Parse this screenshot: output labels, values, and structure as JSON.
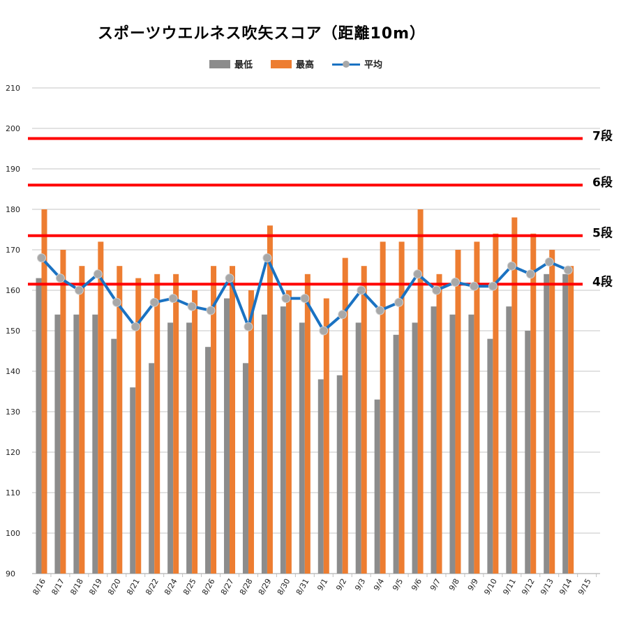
{
  "title": "スポーツウエルネス吹矢スコア（距離10m）",
  "legend": {
    "low": "最低",
    "high": "最高",
    "avg": "平均"
  },
  "colors": {
    "low": "#8c8c8c",
    "high": "#ed7d31",
    "avg_line": "#1a72c2",
    "avg_marker": "#a8a8a8",
    "dan_line": "#ff0000",
    "grid": "#d9d9d9"
  },
  "chart_data": {
    "type": "bar",
    "title": "スポーツウエルネス吹矢スコア（距離10m）",
    "xlabel": "",
    "ylabel": "",
    "ylim": [
      90,
      210
    ],
    "yticks": [
      90,
      100,
      110,
      120,
      130,
      140,
      150,
      160,
      170,
      180,
      190,
      200,
      210
    ],
    "grid": true,
    "legend_position": "top",
    "categories": [
      "8/16",
      "8/17",
      "8/18",
      "8/19",
      "8/20",
      "8/21",
      "8/22",
      "8/24",
      "8/25",
      "8/26",
      "8/27",
      "8/28",
      "8/29",
      "8/30",
      "8/31",
      "9/1",
      "9/2",
      "9/3",
      "9/4",
      "9/5",
      "9/6",
      "9/7",
      "9/8",
      "9/9",
      "9/10",
      "9/11",
      "9/12",
      "9/13",
      "9/14",
      "9/15"
    ],
    "series": [
      {
        "name": "最低",
        "type": "bar",
        "values": [
          163,
          154,
          154,
          154,
          148,
          136,
          142,
          152,
          152,
          146,
          158,
          142,
          154,
          156,
          152,
          138,
          139,
          152,
          133,
          149,
          152,
          156,
          154,
          154,
          148,
          156,
          150,
          164,
          164,
          null
        ]
      },
      {
        "name": "最高",
        "type": "bar",
        "values": [
          180,
          170,
          166,
          172,
          166,
          163,
          164,
          164,
          160,
          166,
          166,
          160,
          176,
          160,
          164,
          158,
          168,
          166,
          172,
          172,
          180,
          164,
          170,
          172,
          174,
          178,
          174,
          170,
          166,
          null
        ]
      },
      {
        "name": "平均",
        "type": "line",
        "values": [
          168,
          163,
          160,
          164,
          157,
          151,
          157,
          158,
          156,
          155,
          163,
          151,
          168,
          158,
          158,
          150,
          154,
          160,
          155,
          157,
          164,
          160,
          162,
          161,
          161,
          166,
          164,
          167,
          165,
          null
        ]
      }
    ],
    "reference_lines": [
      {
        "label": "7段",
        "value": 197.5
      },
      {
        "label": "6段",
        "value": 186
      },
      {
        "label": "5段",
        "value": 173.5
      },
      {
        "label": "4段",
        "value": 161.5
      }
    ]
  }
}
